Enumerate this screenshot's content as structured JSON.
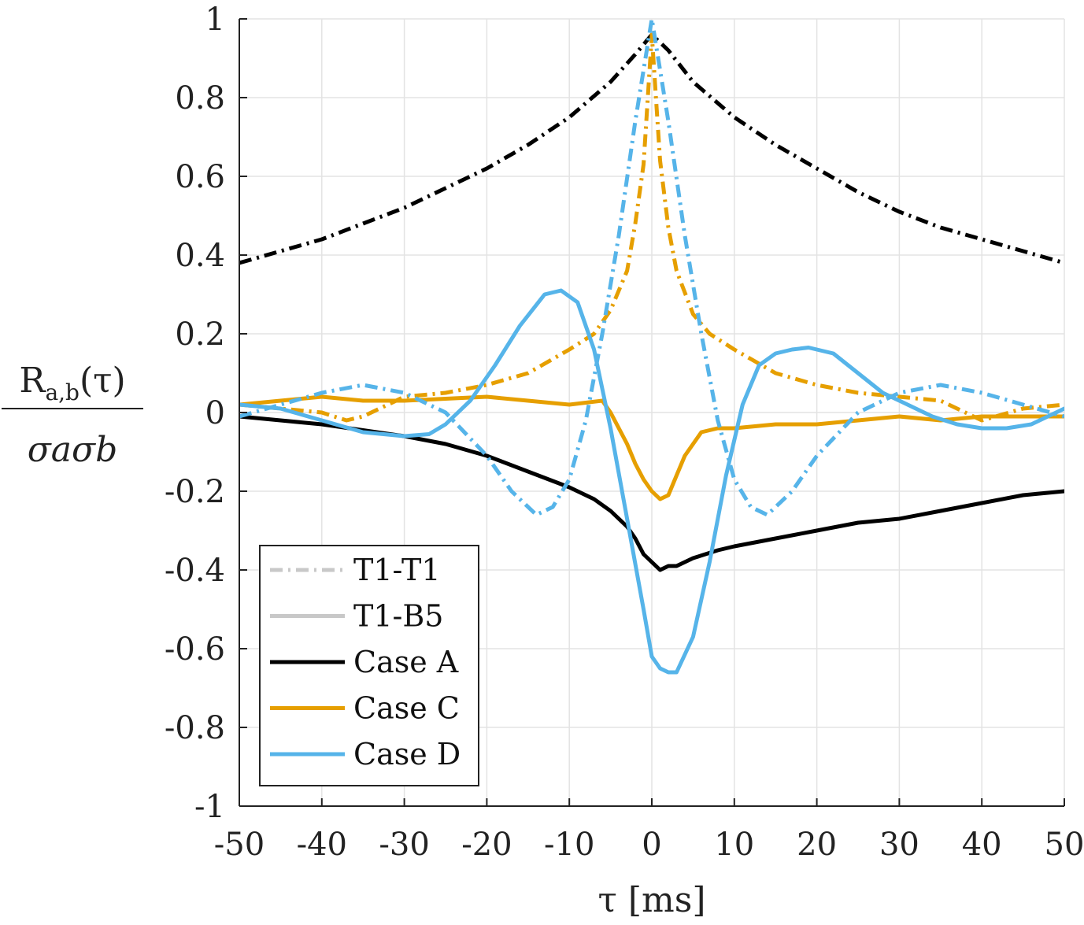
{
  "chart_data": {
    "type": "line",
    "xlabel": "τ [ms]",
    "ylabel": {
      "numerator": "R",
      "numerator_sub": "a,b",
      "numerator_arg": "(τ)",
      "denominator": "σaσb"
    },
    "xlim": [
      -50,
      50
    ],
    "ylim": [
      -1,
      1
    ],
    "x_ticks": [
      -50,
      -40,
      -30,
      -20,
      -10,
      0,
      10,
      20,
      30,
      40,
      50
    ],
    "y_ticks": [
      -1,
      -0.8,
      -0.6,
      -0.4,
      -0.2,
      0,
      0.2,
      0.4,
      0.6,
      0.8,
      1
    ],
    "grid": true,
    "legend_position": "bottom-left",
    "legend": [
      {
        "label": "T1-T1",
        "style": "dashdot",
        "color": "#c8c8c8"
      },
      {
        "label": "T1-B5",
        "style": "solid",
        "color": "#c8c8c8"
      },
      {
        "label": "Case A",
        "style": "solid",
        "color": "#000000"
      },
      {
        "label": "Case C",
        "style": "solid",
        "color": "#e69f00"
      },
      {
        "label": "Case D",
        "style": "solid",
        "color": "#56b4e9"
      }
    ],
    "series": [
      {
        "name": "Case A T1-T1",
        "case": "Case A",
        "pair": "T1-T1",
        "color": "#000000",
        "style": "dashdot",
        "x": [
          -50,
          -45,
          -40,
          -35,
          -30,
          -25,
          -20,
          -15,
          -10,
          -5,
          -2,
          0,
          2,
          5,
          10,
          15,
          20,
          25,
          30,
          35,
          40,
          45,
          50
        ],
        "y": [
          0.38,
          0.41,
          0.44,
          0.48,
          0.52,
          0.57,
          0.62,
          0.68,
          0.75,
          0.84,
          0.91,
          0.96,
          0.92,
          0.84,
          0.75,
          0.68,
          0.62,
          0.56,
          0.51,
          0.47,
          0.44,
          0.41,
          0.38
        ]
      },
      {
        "name": "Case A T1-B5",
        "case": "Case A",
        "pair": "T1-B5",
        "color": "#000000",
        "style": "solid",
        "x": [
          -50,
          -45,
          -40,
          -35,
          -30,
          -25,
          -20,
          -15,
          -10,
          -7,
          -5,
          -3,
          -2,
          -1,
          0,
          1,
          2,
          3,
          5,
          8,
          10,
          15,
          20,
          25,
          30,
          35,
          40,
          45,
          50
        ],
        "y": [
          -0.01,
          -0.02,
          -0.03,
          -0.045,
          -0.06,
          -0.08,
          -0.11,
          -0.15,
          -0.19,
          -0.22,
          -0.25,
          -0.29,
          -0.32,
          -0.36,
          -0.38,
          -0.4,
          -0.39,
          -0.39,
          -0.37,
          -0.35,
          -0.34,
          -0.32,
          -0.3,
          -0.28,
          -0.27,
          -0.25,
          -0.23,
          -0.21,
          -0.2
        ]
      },
      {
        "name": "Case C T1-T1",
        "case": "Case C",
        "pair": "T1-T1",
        "color": "#e69f00",
        "style": "dashdot",
        "x": [
          -50,
          -45,
          -40,
          -37,
          -35,
          -30,
          -25,
          -20,
          -15,
          -10,
          -7,
          -5,
          -3,
          -2,
          -1,
          0,
          1,
          2,
          3,
          5,
          7,
          10,
          15,
          20,
          25,
          30,
          35,
          40,
          45,
          50
        ],
        "y": [
          0.02,
          0.01,
          0.0,
          -0.02,
          -0.01,
          0.04,
          0.05,
          0.07,
          0.1,
          0.16,
          0.2,
          0.26,
          0.36,
          0.48,
          0.63,
          0.96,
          0.64,
          0.47,
          0.36,
          0.25,
          0.2,
          0.16,
          0.1,
          0.07,
          0.05,
          0.04,
          0.03,
          -0.02,
          0.01,
          0.02
        ]
      },
      {
        "name": "Case C T1-B5",
        "case": "Case C",
        "pair": "T1-B5",
        "color": "#e69f00",
        "style": "solid",
        "x": [
          -50,
          -45,
          -40,
          -35,
          -30,
          -25,
          -20,
          -15,
          -10,
          -6,
          -5,
          -4,
          -3,
          -2,
          -1,
          0,
          1,
          2,
          3,
          4,
          5,
          6,
          8,
          10,
          15,
          20,
          25,
          30,
          35,
          40,
          45,
          50
        ],
        "y": [
          0.02,
          0.03,
          0.04,
          0.03,
          0.03,
          0.035,
          0.04,
          0.03,
          0.02,
          0.03,
          0.0,
          -0.04,
          -0.08,
          -0.13,
          -0.17,
          -0.2,
          -0.22,
          -0.21,
          -0.16,
          -0.11,
          -0.08,
          -0.05,
          -0.04,
          -0.04,
          -0.03,
          -0.03,
          -0.02,
          -0.01,
          -0.02,
          -0.01,
          -0.01,
          -0.01
        ]
      },
      {
        "name": "Case D T1-T1",
        "case": "Case D",
        "pair": "T1-T1",
        "color": "#56b4e9",
        "style": "dashdot",
        "x": [
          -50,
          -45,
          -40,
          -35,
          -30,
          -25,
          -20,
          -17,
          -14,
          -12,
          -10,
          -8,
          -6,
          -4,
          -2,
          0,
          2,
          4,
          6,
          8,
          10,
          12,
          14,
          17,
          20,
          25,
          30,
          35,
          40,
          45,
          50
        ],
        "y": [
          -0.01,
          0.02,
          0.05,
          0.07,
          0.05,
          0.0,
          -0.11,
          -0.2,
          -0.26,
          -0.24,
          -0.17,
          -0.02,
          0.2,
          0.45,
          0.74,
          1.0,
          0.74,
          0.45,
          0.2,
          -0.02,
          -0.17,
          -0.24,
          -0.26,
          -0.2,
          -0.11,
          0.0,
          0.05,
          0.07,
          0.05,
          0.02,
          -0.01
        ]
      },
      {
        "name": "Case D T1-B5",
        "case": "Case D",
        "pair": "T1-B5",
        "color": "#56b4e9",
        "style": "solid",
        "x": [
          -50,
          -45,
          -40,
          -35,
          -30,
          -27,
          -25,
          -22,
          -19,
          -16,
          -13,
          -11,
          -9,
          -7,
          -5,
          -3,
          -1,
          0,
          1,
          2,
          3,
          5,
          7,
          9,
          11,
          13,
          15,
          17,
          19,
          22,
          25,
          28,
          31,
          34,
          37,
          40,
          43,
          46,
          50
        ],
        "y": [
          0.02,
          0.01,
          -0.02,
          -0.05,
          -0.06,
          -0.055,
          -0.03,
          0.03,
          0.12,
          0.22,
          0.3,
          0.31,
          0.28,
          0.16,
          -0.04,
          -0.27,
          -0.5,
          -0.62,
          -0.65,
          -0.66,
          -0.66,
          -0.57,
          -0.38,
          -0.16,
          0.02,
          0.12,
          0.15,
          0.16,
          0.165,
          0.15,
          0.1,
          0.05,
          0.02,
          -0.01,
          -0.03,
          -0.04,
          -0.04,
          -0.03,
          0.01
        ]
      }
    ]
  }
}
